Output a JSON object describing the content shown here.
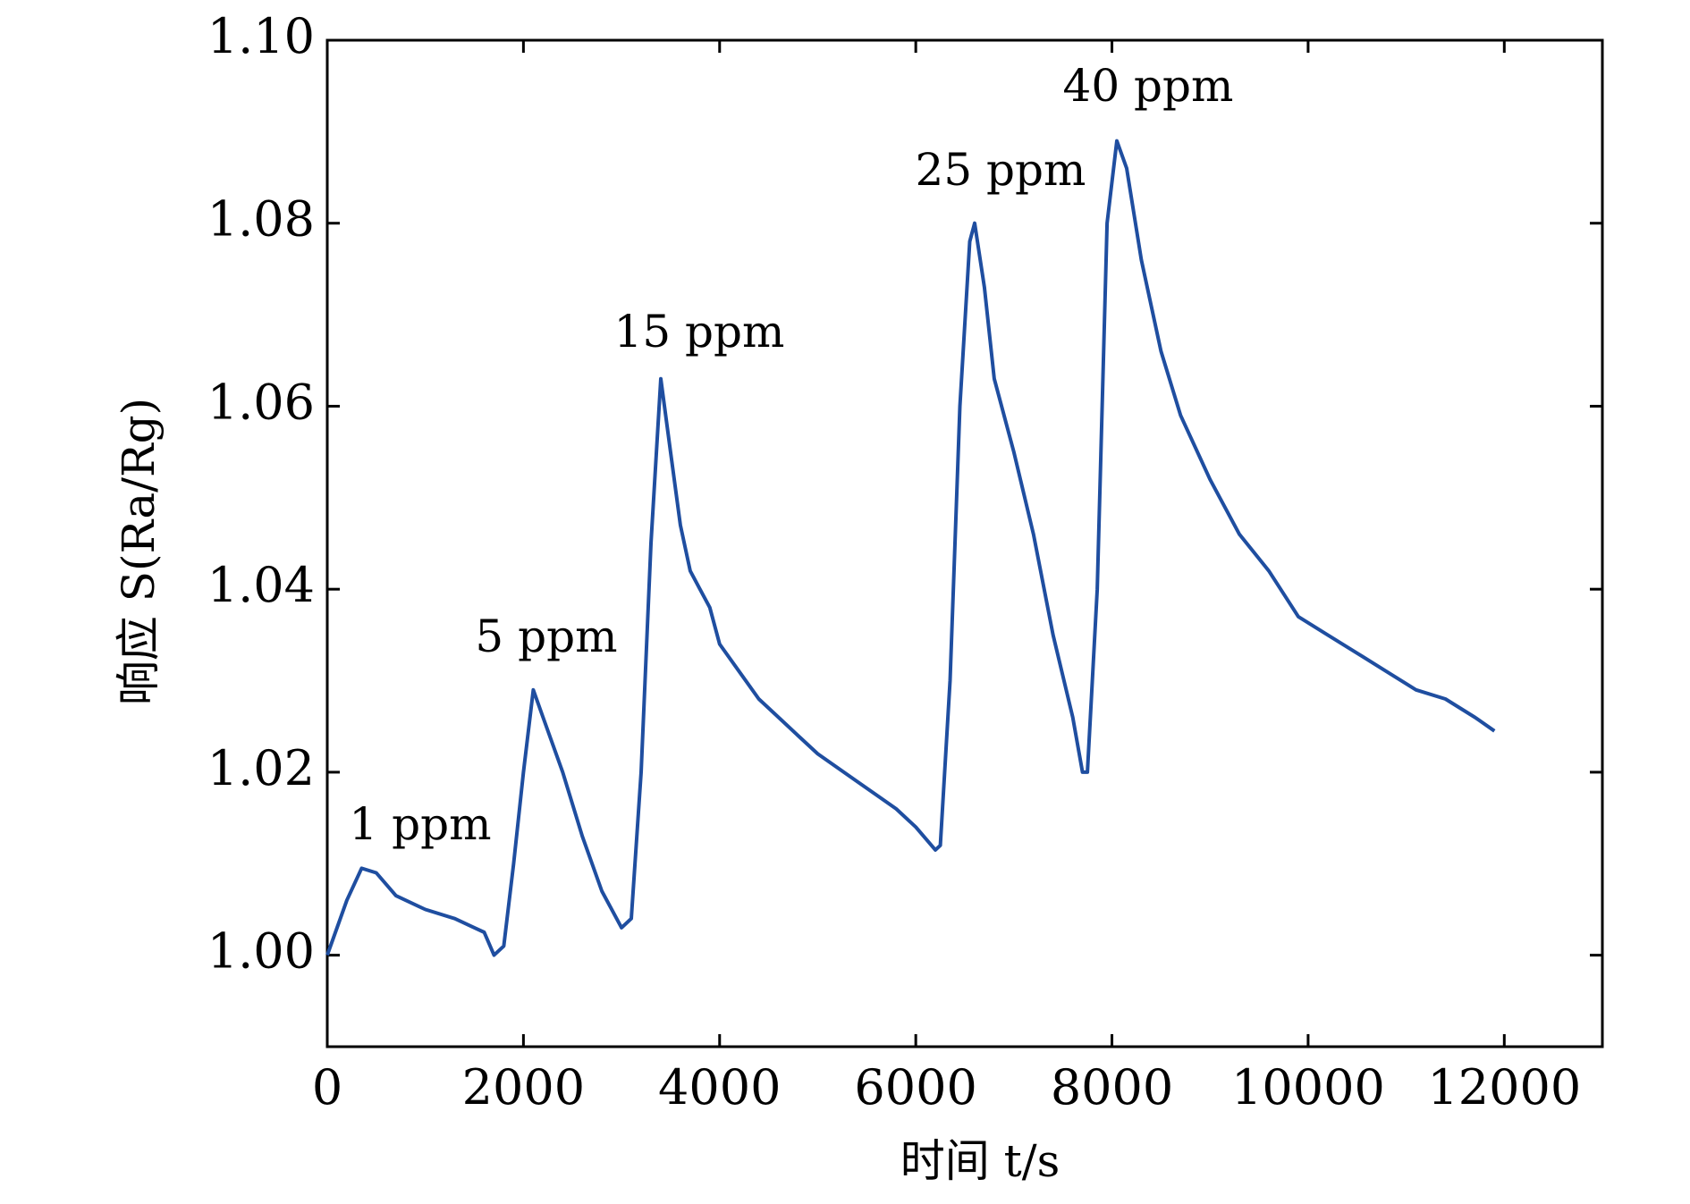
{
  "chart_data": {
    "type": "line",
    "xlabel": "时间 t/s",
    "ylabel": "响应 S(Ra/Rg)",
    "annotations": [
      "1 ppm",
      "5 ppm",
      "15 ppm",
      "25 ppm",
      "40 ppm"
    ],
    "x": [
      0,
      200,
      350,
      500,
      700,
      1000,
      1300,
      1500,
      1600,
      1700,
      1800,
      1900,
      2000,
      2100,
      2200,
      2400,
      2600,
      2800,
      3000,
      3100,
      3200,
      3300,
      3400,
      3500,
      3600,
      3700,
      3800,
      3900,
      4000,
      4200,
      4400,
      4600,
      4800,
      5000,
      5200,
      5400,
      5600,
      5800,
      6000,
      6200,
      6250,
      6350,
      6450,
      6550,
      6600,
      6700,
      6800,
      7000,
      7200,
      7400,
      7600,
      7700,
      7750,
      7850,
      7950,
      8050,
      8150,
      8300,
      8500,
      8700,
      9000,
      9300,
      9600,
      9900,
      10200,
      10500,
      10800,
      11100,
      11400,
      11700,
      11900
    ],
    "series": [
      {
        "color": "#1f4ea0",
        "values": [
          1.0,
          1.006,
          1.0095,
          1.009,
          1.0065,
          1.005,
          1.004,
          1.003,
          1.0025,
          1.0,
          1.001,
          1.01,
          1.02,
          1.029,
          1.026,
          1.02,
          1.013,
          1.007,
          1.003,
          1.004,
          1.02,
          1.045,
          1.063,
          1.055,
          1.047,
          1.042,
          1.04,
          1.038,
          1.034,
          1.031,
          1.028,
          1.026,
          1.024,
          1.022,
          1.0205,
          1.019,
          1.0175,
          1.016,
          1.014,
          1.0115,
          1.012,
          1.03,
          1.06,
          1.078,
          1.08,
          1.073,
          1.063,
          1.055,
          1.046,
          1.035,
          1.026,
          1.02,
          1.02,
          1.04,
          1.08,
          1.089,
          1.086,
          1.076,
          1.066,
          1.059,
          1.052,
          1.046,
          1.042,
          1.037,
          1.035,
          1.033,
          1.031,
          1.029,
          1.028,
          1.026,
          1.0245
        ]
      }
    ],
    "xlim": [
      0,
      13000
    ],
    "ylim": [
      0.99,
      1.1
    ],
    "xticks": [
      0,
      2000,
      4000,
      6000,
      8000,
      10000,
      12000
    ],
    "yticks": [
      {
        "value": 1.0,
        "label": "1.00"
      },
      {
        "value": 1.02,
        "label": "1.02"
      },
      {
        "value": 1.04,
        "label": "1.04"
      },
      {
        "value": 1.06,
        "label": "1.06"
      },
      {
        "value": 1.08,
        "label": "1.08"
      },
      {
        "value": 1.1,
        "label": "1.10"
      }
    ]
  }
}
